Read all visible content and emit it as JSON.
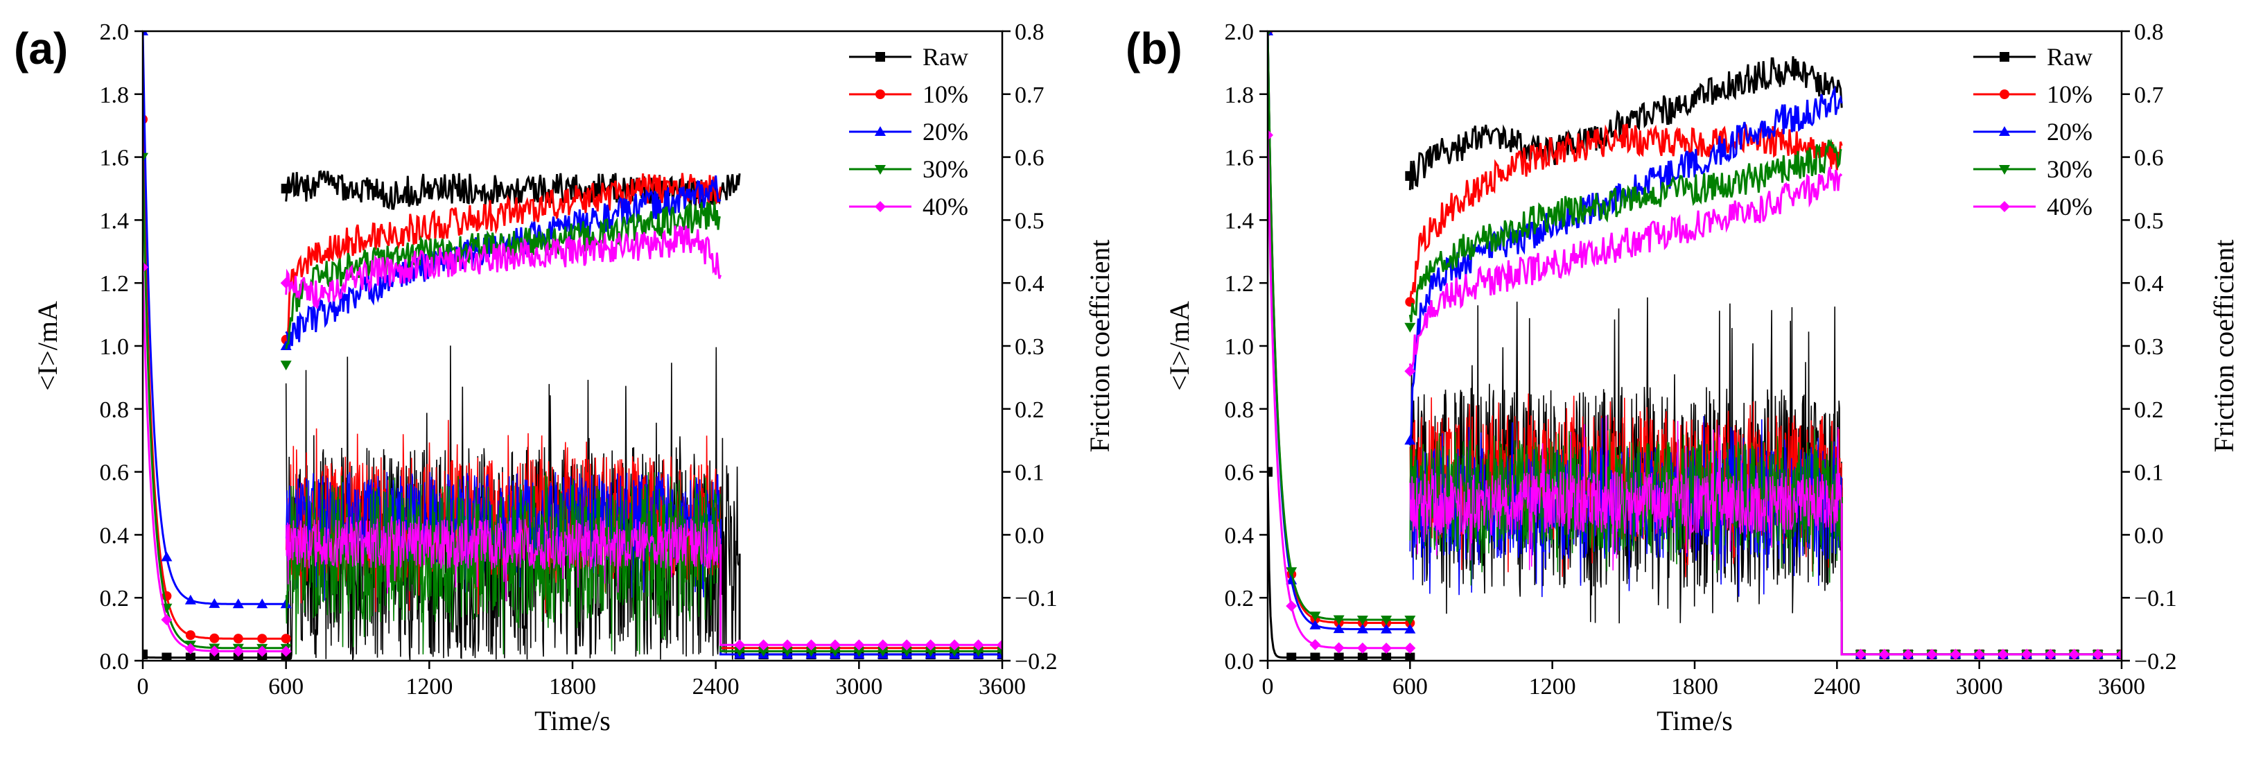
{
  "figure": {
    "palette": {
      "Raw": "#000000",
      "10%": "#ff0000",
      "20%": "#0000ff",
      "30%": "#008000",
      "40%": "#ff00ff"
    },
    "marker_shapes": {
      "Raw": "square",
      "10%": "circle",
      "20%": "triangle-up",
      "30%": "triangle-down",
      "40%": "diamond"
    }
  },
  "chart_data": [
    {
      "id": "a",
      "type": "line",
      "panel_label": "(a)",
      "xlabel": "Time/s",
      "ylabel_left": "<I>/mA",
      "ylabel_right": "Friction coefficient",
      "xlim": [
        0,
        3600
      ],
      "ylim_left": [
        0.0,
        2.0
      ],
      "ylim_right": [
        -0.2,
        0.8
      ],
      "x_ticks": [
        "0",
        "600",
        "1200",
        "1800",
        "2400",
        "3000",
        "3600"
      ],
      "y_left_ticks": [
        "0.0",
        "0.2",
        "0.4",
        "0.6",
        "0.8",
        "1.0",
        "1.2",
        "1.4",
        "1.6",
        "1.8",
        "2.0"
      ],
      "y_right_ticks": [
        "−0.2",
        "−0.1",
        "0.0",
        "0.1",
        "0.2",
        "0.3",
        "0.4",
        "0.5",
        "0.6",
        "0.7",
        "0.8"
      ],
      "legend": [
        "Raw",
        "10%",
        "20%",
        "30%",
        "40%"
      ],
      "legend_position": "top-right",
      "series": [
        {
          "name": "Raw",
          "current_decay": {
            "start": 0.02,
            "base": 0.01
          },
          "current_plateau": {
            "center": 0.34,
            "half_range": 0.34,
            "peak": 1.05
          },
          "current_tail": 0.02,
          "test_end": 2500,
          "friction": [
            [
              600,
              0.55
            ],
            [
              800,
              0.56
            ],
            [
              1000,
              0.54
            ],
            [
              1200,
              0.55
            ],
            [
              1500,
              0.55
            ],
            [
              1800,
              0.55
            ],
            [
              2100,
              0.55
            ],
            [
              2300,
              0.54
            ],
            [
              2500,
              0.55
            ]
          ]
        },
        {
          "name": "10%",
          "current_decay": {
            "start": 1.72,
            "base": 0.07
          },
          "current_plateau": {
            "center": 0.45,
            "half_range": 0.2,
            "peak": 0.77
          },
          "current_tail": 0.04,
          "test_end": 2420,
          "friction": [
            [
              600,
              0.31
            ],
            [
              620,
              0.4
            ],
            [
              700,
              0.44
            ],
            [
              900,
              0.47
            ],
            [
              1200,
              0.49
            ],
            [
              1500,
              0.51
            ],
            [
              1800,
              0.53
            ],
            [
              2100,
              0.55
            ],
            [
              2420,
              0.55
            ]
          ]
        },
        {
          "name": "20%",
          "current_decay": {
            "start": 2.0,
            "base": 0.18
          },
          "current_plateau": {
            "center": 0.45,
            "half_range": 0.14,
            "peak": 0.6
          },
          "current_tail": 0.02,
          "test_end": 2420,
          "friction": [
            [
              600,
              0.3
            ],
            [
              650,
              0.33
            ],
            [
              800,
              0.36
            ],
            [
              1000,
              0.4
            ],
            [
              1200,
              0.43
            ],
            [
              1500,
              0.46
            ],
            [
              1800,
              0.49
            ],
            [
              2100,
              0.52
            ],
            [
              2420,
              0.55
            ]
          ]
        },
        {
          "name": "30%",
          "current_decay": {
            "start": 1.6,
            "base": 0.04
          },
          "current_plateau": {
            "center": 0.34,
            "half_range": 0.22,
            "peak": 0.6
          },
          "current_tail": 0.03,
          "test_end": 2420,
          "friction": [
            [
              600,
              0.27
            ],
            [
              620,
              0.36
            ],
            [
              700,
              0.4
            ],
            [
              900,
              0.43
            ],
            [
              1200,
              0.45
            ],
            [
              1500,
              0.46
            ],
            [
              1800,
              0.47
            ],
            [
              2100,
              0.49
            ],
            [
              2420,
              0.51
            ]
          ]
        },
        {
          "name": "40%",
          "current_decay": {
            "start": 1.25,
            "base": 0.03
          },
          "current_plateau": {
            "center": 0.37,
            "half_range": 0.08,
            "peak": 0.46
          },
          "current_tail": 0.05,
          "test_end": 2420,
          "friction": [
            [
              600,
              0.4
            ],
            [
              700,
              0.38
            ],
            [
              900,
              0.41
            ],
            [
              1200,
              0.43
            ],
            [
              1500,
              0.44
            ],
            [
              1800,
              0.45
            ],
            [
              2100,
              0.46
            ],
            [
              2300,
              0.47
            ],
            [
              2420,
              0.43
            ]
          ]
        }
      ]
    },
    {
      "id": "b",
      "type": "line",
      "panel_label": "(b)",
      "xlabel": "Time/s",
      "ylabel_left": "<I>/mA",
      "ylabel_right": "Friction coefficient",
      "xlim": [
        0,
        3600
      ],
      "ylim_left": [
        0.0,
        2.0
      ],
      "ylim_right": [
        -0.2,
        0.8
      ],
      "x_ticks": [
        "0",
        "600",
        "1200",
        "1800",
        "2400",
        "3000",
        "3600"
      ],
      "y_left_ticks": [
        "0.0",
        "0.2",
        "0.4",
        "0.6",
        "0.8",
        "1.0",
        "1.2",
        "1.4",
        "1.6",
        "1.8",
        "2.0"
      ],
      "y_right_ticks": [
        "−0.2",
        "−0.1",
        "0.0",
        "0.1",
        "0.2",
        "0.3",
        "0.4",
        "0.5",
        "0.6",
        "0.7",
        "0.8"
      ],
      "legend": [
        "Raw",
        "10%",
        "20%",
        "30%",
        "40%"
      ],
      "legend_position": "top-right",
      "series": [
        {
          "name": "Raw",
          "current_decay": {
            "start": 0.6,
            "base": 0.01
          },
          "current_plateau": {
            "center": 0.55,
            "half_range": 0.32,
            "peak": 1.2
          },
          "current_tail": 0.02,
          "test_end": 2420,
          "friction": [
            [
              600,
              0.57
            ],
            [
              700,
              0.6
            ],
            [
              900,
              0.63
            ],
            [
              1200,
              0.61
            ],
            [
              1500,
              0.65
            ],
            [
              1800,
              0.69
            ],
            [
              2000,
              0.72
            ],
            [
              2200,
              0.74
            ],
            [
              2420,
              0.7
            ]
          ]
        },
        {
          "name": "10%",
          "current_decay": {
            "start": 2.0,
            "base": 0.12
          },
          "current_plateau": {
            "center": 0.58,
            "half_range": 0.2,
            "peak": 0.85
          },
          "current_tail": 0.02,
          "test_end": 2420,
          "friction": [
            [
              600,
              0.37
            ],
            [
              650,
              0.47
            ],
            [
              800,
              0.53
            ],
            [
              1000,
              0.58
            ],
            [
              1200,
              0.61
            ],
            [
              1500,
              0.63
            ],
            [
              1800,
              0.62
            ],
            [
              2100,
              0.63
            ],
            [
              2420,
              0.6
            ]
          ]
        },
        {
          "name": "20%",
          "current_decay": {
            "start": 2.0,
            "base": 0.1
          },
          "current_plateau": {
            "center": 0.5,
            "half_range": 0.18,
            "peak": 0.78
          },
          "current_tail": 0.02,
          "test_end": 2420,
          "friction": [
            [
              600,
              0.15
            ],
            [
              630,
              0.33
            ],
            [
              700,
              0.4
            ],
            [
              900,
              0.45
            ],
            [
              1200,
              0.49
            ],
            [
              1500,
              0.54
            ],
            [
              1800,
              0.59
            ],
            [
              2100,
              0.65
            ],
            [
              2420,
              0.69
            ]
          ]
        },
        {
          "name": "30%",
          "current_decay": {
            "start": 2.0,
            "base": 0.13
          },
          "current_plateau": {
            "center": 0.52,
            "half_range": 0.18,
            "peak": 0.74
          },
          "current_tail": 0.02,
          "test_end": 2420,
          "friction": [
            [
              600,
              0.33
            ],
            [
              650,
              0.41
            ],
            [
              800,
              0.45
            ],
            [
              1000,
              0.48
            ],
            [
              1200,
              0.51
            ],
            [
              1500,
              0.53
            ],
            [
              1800,
              0.55
            ],
            [
              2100,
              0.57
            ],
            [
              2420,
              0.61
            ]
          ]
        },
        {
          "name": "40%",
          "current_decay": {
            "start": 1.67,
            "base": 0.04
          },
          "current_plateau": {
            "center": 0.5,
            "half_range": 0.1,
            "peak": 0.78
          },
          "current_tail": 0.02,
          "test_end": 2420,
          "friction": [
            [
              600,
              0.26
            ],
            [
              630,
              0.32
            ],
            [
              700,
              0.37
            ],
            [
              900,
              0.4
            ],
            [
              1200,
              0.43
            ],
            [
              1500,
              0.46
            ],
            [
              1800,
              0.49
            ],
            [
              2100,
              0.52
            ],
            [
              2420,
              0.57
            ]
          ]
        }
      ]
    }
  ]
}
